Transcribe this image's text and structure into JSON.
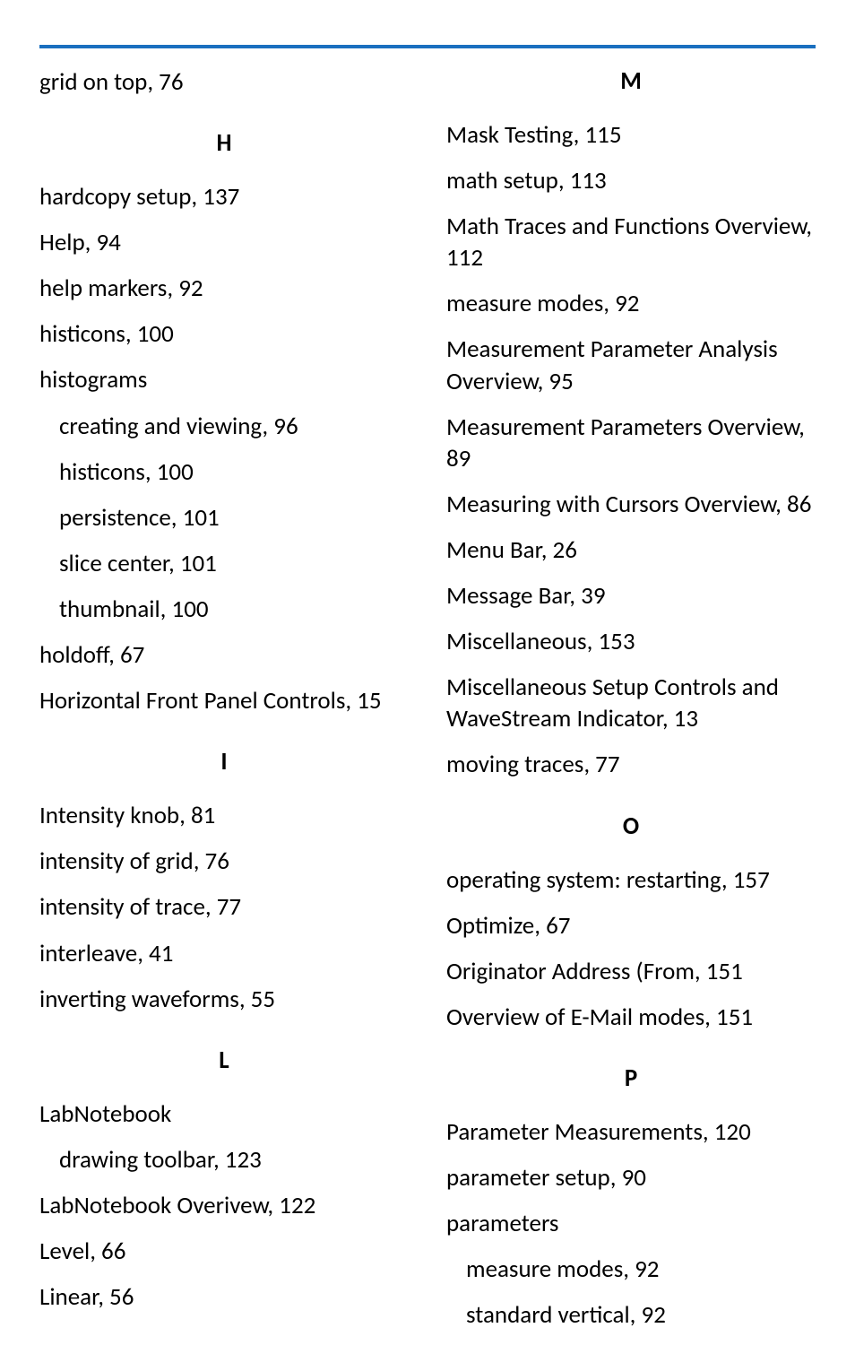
{
  "colors": {
    "rule": "#1a6fbf",
    "text": "#000000",
    "background": "#ffffff"
  },
  "left": {
    "top_entry": "grid on top, 76",
    "sections": [
      {
        "letter": "H",
        "entries": [
          {
            "text": "hardcopy setup, 137"
          },
          {
            "text": "Help, 94"
          },
          {
            "text": "help markers, 92"
          },
          {
            "text": "histicons, 100"
          },
          {
            "text": "histograms"
          },
          {
            "text": "creating and viewing, 96",
            "indent": true
          },
          {
            "text": "histicons, 100",
            "indent": true
          },
          {
            "text": "persistence, 101",
            "indent": true
          },
          {
            "text": "slice center, 101",
            "indent": true
          },
          {
            "text": "thumbnail, 100",
            "indent": true
          },
          {
            "text": "holdoff, 67"
          },
          {
            "text": "Horizontal Front Panel Controls, 15"
          }
        ]
      },
      {
        "letter": "I",
        "entries": [
          {
            "text": "Intensity knob, 81"
          },
          {
            "text": "intensity of grid, 76"
          },
          {
            "text": "intensity of trace, 77"
          },
          {
            "text": "interleave, 41"
          },
          {
            "text": "inverting waveforms, 55"
          }
        ]
      },
      {
        "letter": "L",
        "entries": [
          {
            "text": "LabNotebook"
          },
          {
            "text": "drawing toolbar, 123",
            "indent": true
          },
          {
            "text": "LabNotebook Overivew, 122"
          },
          {
            "text": "Level, 66"
          },
          {
            "text": "Linear, 56"
          }
        ]
      }
    ]
  },
  "right": {
    "sections": [
      {
        "letter": "M",
        "letter_top_tight": true,
        "entries": [
          {
            "text": "Mask Testing, 115"
          },
          {
            "text": "math setup, 113"
          },
          {
            "text": "Math Traces and Functions Overview, 112"
          },
          {
            "text": "measure modes, 92"
          },
          {
            "text": "Measurement Parameter Analysis Overview, 95"
          },
          {
            "text": "Measurement Parameters Overview, 89"
          },
          {
            "text": "Measuring   with Cursors Overview, 86"
          },
          {
            "text": "Menu Bar, 26"
          },
          {
            "text": "Message Bar, 39"
          },
          {
            "text": "Miscellaneous, 153"
          },
          {
            "text": "Miscellaneous Setup Controls and WaveStream Indicator, 13"
          },
          {
            "text": "moving traces, 77"
          }
        ]
      },
      {
        "letter": "O",
        "entries": [
          {
            "text": "operating system: restarting, 157"
          },
          {
            "text": "Optimize, 67"
          },
          {
            "text": "Originator Address (From, 151"
          },
          {
            "text": "Overview of E-Mail modes, 151"
          }
        ]
      },
      {
        "letter": "P",
        "entries": [
          {
            "text": "Parameter Measurements, 120"
          },
          {
            "text": "parameter setup, 90"
          },
          {
            "text": "parameters"
          },
          {
            "text": "measure modes, 92",
            "indent": true
          },
          {
            "text": "standard vertical, 92",
            "indent": true
          }
        ]
      }
    ]
  }
}
